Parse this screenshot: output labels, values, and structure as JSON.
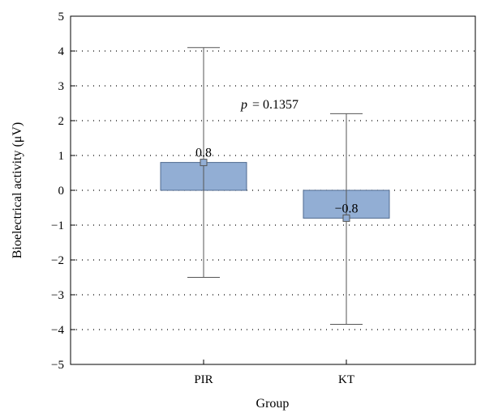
{
  "chart_data": {
    "type": "bar",
    "categories": [
      "PIR",
      "KT"
    ],
    "values": [
      0.8,
      -0.8
    ],
    "error_low": [
      -2.5,
      -3.85
    ],
    "error_high": [
      4.1,
      2.2
    ],
    "data_labels": [
      "0.8",
      "−0.8"
    ],
    "xlabel": "Group",
    "ylabel": "Bioelectrical activity (μV)",
    "ylim": [
      -5,
      5
    ],
    "yticks": [
      {
        "value": 5,
        "label": "5"
      },
      {
        "value": 4,
        "label": "4"
      },
      {
        "value": 3,
        "label": "3"
      },
      {
        "value": 2,
        "label": "2"
      },
      {
        "value": 1,
        "label": "1"
      },
      {
        "value": 0,
        "label": "0"
      },
      {
        "value": -1,
        "label": "−1"
      },
      {
        "value": -2,
        "label": "−2"
      },
      {
        "value": -3,
        "label": "−3"
      },
      {
        "value": -4,
        "label": "−4"
      },
      {
        "value": -5,
        "label": "−5"
      }
    ],
    "grid": "horizontal-dotted",
    "annotation": {
      "symbol": "p",
      "text": "= 0.1357"
    },
    "bar_color": "#92aed4",
    "bar_edge_color": "#4f6a8f",
    "errorbar_color": "#555555"
  }
}
